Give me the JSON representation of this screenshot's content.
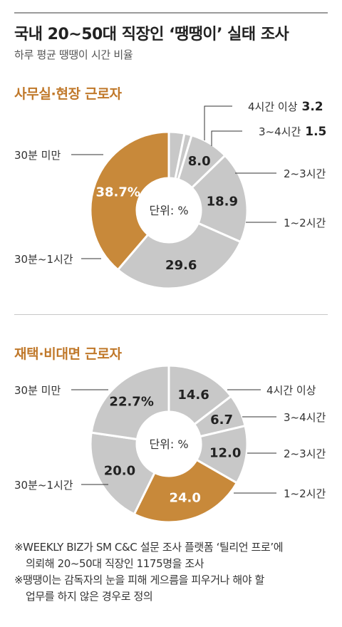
{
  "header": {
    "title": "국내 20~50대 직장인 ‘땡땡이’ 실태 조사",
    "subtitle": "하루 평균 땡땡이 시간 비율"
  },
  "colors": {
    "accent": "#c8893a",
    "gray": "#c8c8c8",
    "section_title": "#c0782a"
  },
  "chart_data": [
    {
      "type": "pie",
      "title": "사무실·현장 근로자",
      "center_label": "단위: %",
      "categories": [
        "4시간 이상",
        "3~4시간",
        "2~3시간",
        "1~2시간",
        "30분~1시간",
        "30분 미만"
      ],
      "values": [
        3.2,
        1.5,
        8.0,
        18.9,
        29.6,
        38.7
      ],
      "value_labels": [
        "3.2",
        "1.5",
        "8.0",
        "18.9",
        "29.6",
        "38.7%"
      ],
      "highlight": "30분 미만"
    },
    {
      "type": "pie",
      "title": "재택·비대면 근로자",
      "center_label": "단위: %",
      "categories": [
        "4시간 이상",
        "3~4시간",
        "2~3시간",
        "1~2시간",
        "30분~1시간",
        "30분 미만"
      ],
      "values": [
        14.6,
        6.7,
        12.0,
        24.0,
        20.0,
        22.7
      ],
      "value_labels": [
        "14.6",
        "6.7",
        "12.0",
        "24.0",
        "20.0",
        "22.7%"
      ],
      "highlight": "1~2시간"
    }
  ],
  "notes": [
    "※WEEKLY BIZ가 SM C&C 설문 조사 플랫폼 ‘틸리언 프로’에",
    "의뢰해 20~50대 직장인 1175명을 조사",
    "※땡땡이는 감독자의 눈을 피해 게으름을 피우거나 해야 할",
    "업무를 하지 않은 경우로 정의"
  ]
}
